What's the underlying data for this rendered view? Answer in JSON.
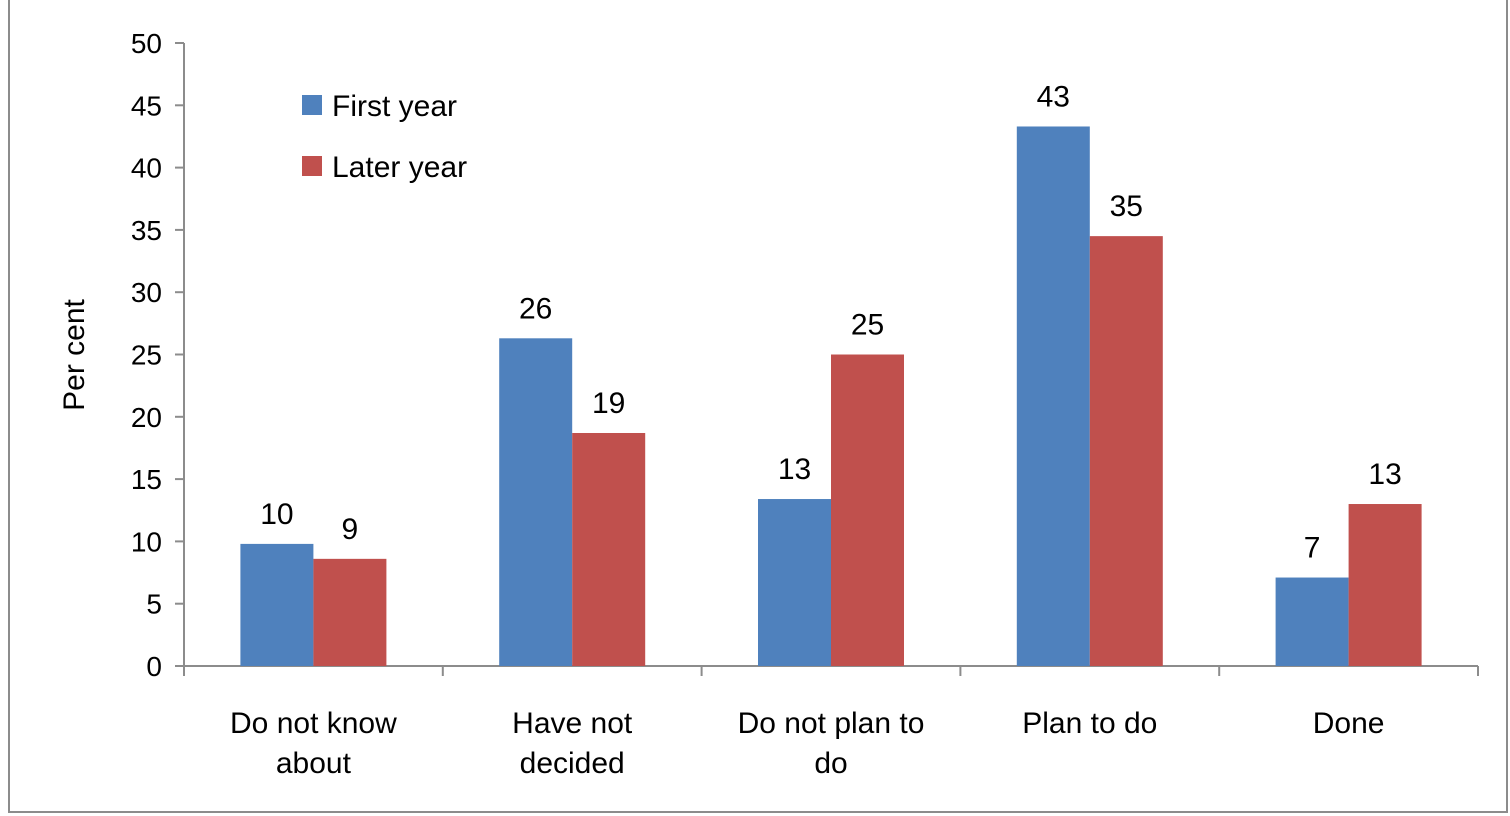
{
  "chart_data": {
    "type": "bar",
    "title": "",
    "xlabel": "",
    "ylabel": "Per cent",
    "ylim": [
      0,
      50
    ],
    "yticks": [
      0,
      5,
      10,
      15,
      20,
      25,
      30,
      35,
      40,
      45,
      50
    ],
    "grid": false,
    "legend_position": "top-left",
    "categories": [
      [
        "Do not know",
        "about"
      ],
      [
        "Have not",
        "decided"
      ],
      [
        "Do not plan to",
        "do"
      ],
      [
        "Plan to do"
      ],
      [
        "Done"
      ]
    ],
    "series": [
      {
        "name": "First year",
        "color": "#4f81bd",
        "values": [
          9.8,
          26.3,
          13.4,
          43.3,
          7.1
        ],
        "labels": [
          "10",
          "26",
          "13",
          "43",
          "7"
        ]
      },
      {
        "name": "Later year",
        "color": "#c0504d",
        "values": [
          8.6,
          18.7,
          25.0,
          34.5,
          13.0
        ],
        "labels": [
          "9",
          "19",
          "25",
          "35",
          "13"
        ]
      }
    ]
  }
}
